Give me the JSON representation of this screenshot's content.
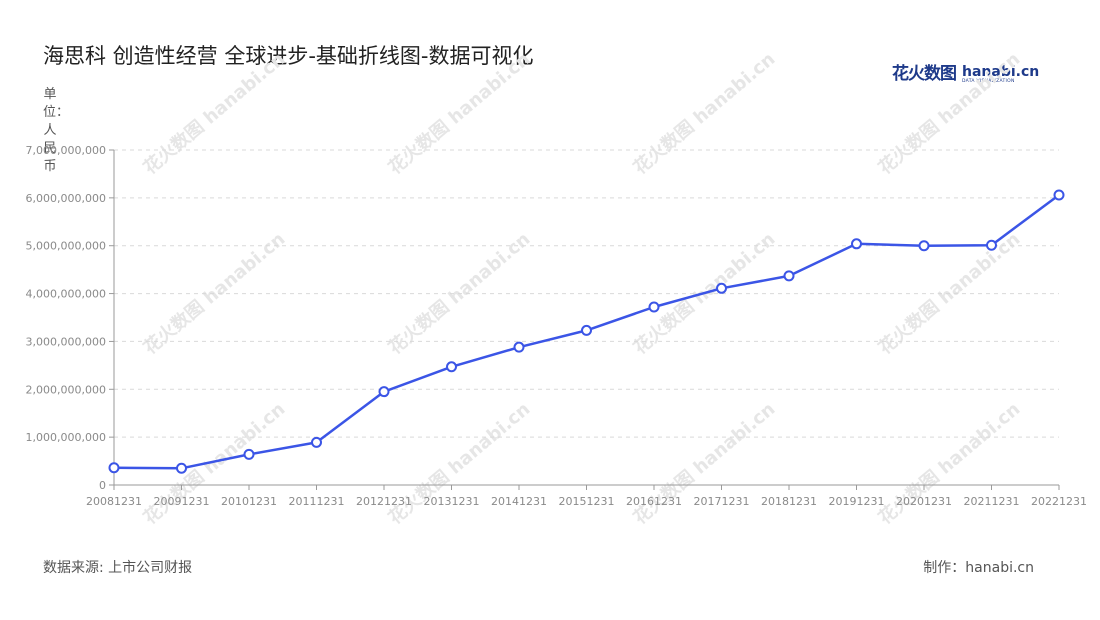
{
  "title": "海思科 创造性经营 全球进步-基础折线图-数据可视化",
  "brand": {
    "cn": "花火数图",
    "en": "hanabi.cn",
    "sub": "DATA VISUALIZATION"
  },
  "footer": {
    "source": "数据来源: 上市公司财报",
    "credit": "制作：hanabi.cn"
  },
  "colors": {
    "line": "#3b55e6",
    "grid": "#d9d9d9",
    "axis": "#9a9a9a",
    "watermark": "#e6e6e6"
  },
  "chart_data": {
    "type": "line",
    "title": "海思科 创造性经营 全球进步-基础折线图-数据可视化",
    "ylabel": "单位：人民币",
    "xlabel": "",
    "categories": [
      "20081231",
      "20091231",
      "20101231",
      "20111231",
      "20121231",
      "20131231",
      "20141231",
      "20151231",
      "20161231",
      "20171231",
      "20181231",
      "20191231",
      "20201231",
      "20211231",
      "20221231"
    ],
    "values": [
      360000000,
      350000000,
      640000000,
      890000000,
      1950000000,
      2470000000,
      2880000000,
      3230000000,
      3720000000,
      4110000000,
      4370000000,
      5040000000,
      5000000000,
      5010000000,
      6060000000
    ],
    "ylim": [
      0,
      7000000000
    ],
    "yticks": [
      0,
      1000000000,
      2000000000,
      3000000000,
      4000000000,
      5000000000,
      6000000000,
      7000000000
    ],
    "ytick_labels": [
      "0",
      "1,000,000,000",
      "2,000,000,000",
      "3,000,000,000",
      "4,000,000,000",
      "5,000,000,000",
      "6,000,000,000",
      "7,000,000,000"
    ],
    "grid": true,
    "legend": "none"
  }
}
